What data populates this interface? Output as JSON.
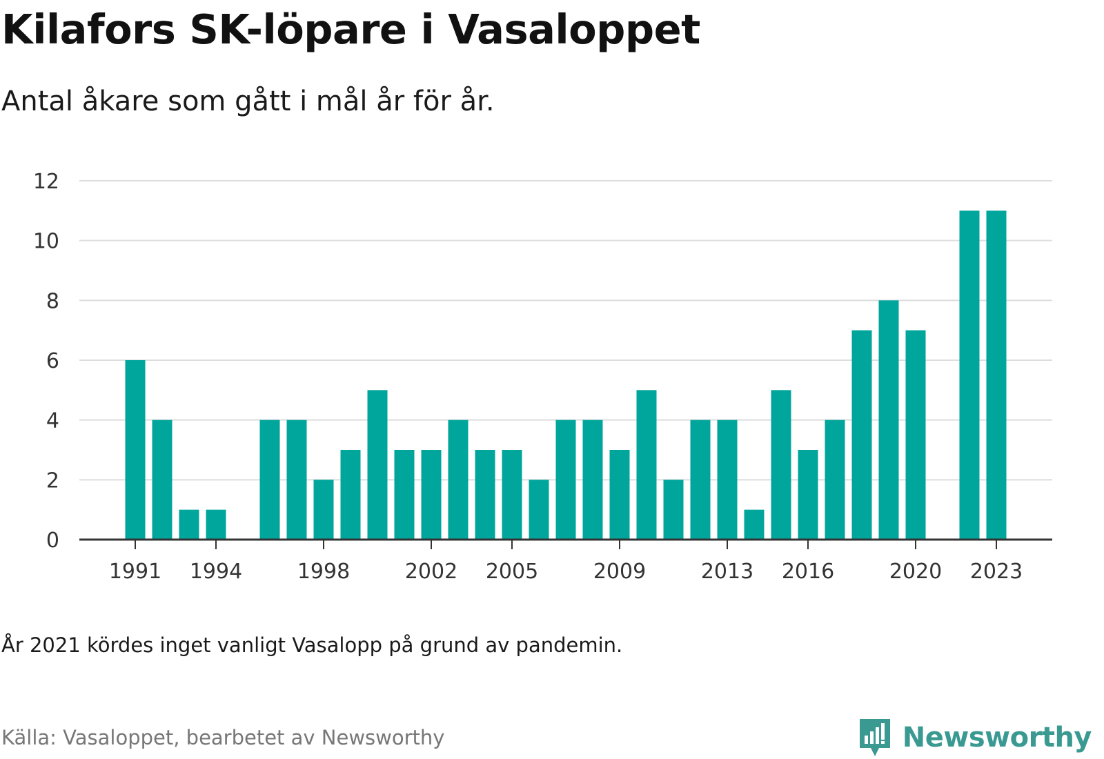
{
  "title": "Kilafors SK-löpare i Vasaloppet",
  "subtitle": "Antal åkare som gått i mål år för år.",
  "note": "År 2021 kördes inget vanligt Vasalopp på grund av pandemin.",
  "source": "Källa: Vasaloppet, bearbetet av Newsworthy",
  "brand": {
    "name": "Newsworthy",
    "color": "#3a9a92"
  },
  "chart_data": {
    "type": "bar",
    "x": [
      1991,
      1992,
      1993,
      1994,
      1995,
      1996,
      1997,
      1998,
      1999,
      2000,
      2001,
      2002,
      2003,
      2004,
      2005,
      2006,
      2007,
      2008,
      2009,
      2010,
      2011,
      2012,
      2013,
      2014,
      2015,
      2016,
      2017,
      2018,
      2019,
      2020,
      2021,
      2022,
      2023
    ],
    "values": [
      6,
      4,
      1,
      1,
      null,
      4,
      4,
      2,
      3,
      5,
      3,
      3,
      4,
      3,
      3,
      2,
      4,
      4,
      3,
      5,
      2,
      4,
      4,
      1,
      5,
      3,
      4,
      7,
      8,
      7,
      null,
      11,
      11
    ],
    "xticks": [
      1991,
      1994,
      1998,
      2002,
      2005,
      2009,
      2013,
      2016,
      2020,
      2023
    ],
    "yticks": [
      0,
      2,
      4,
      6,
      8,
      10,
      12
    ],
    "ylim": [
      0,
      12
    ],
    "xlabel": "",
    "ylabel": "",
    "bar_color": "#00a69c",
    "grid": true,
    "legend": "none"
  }
}
